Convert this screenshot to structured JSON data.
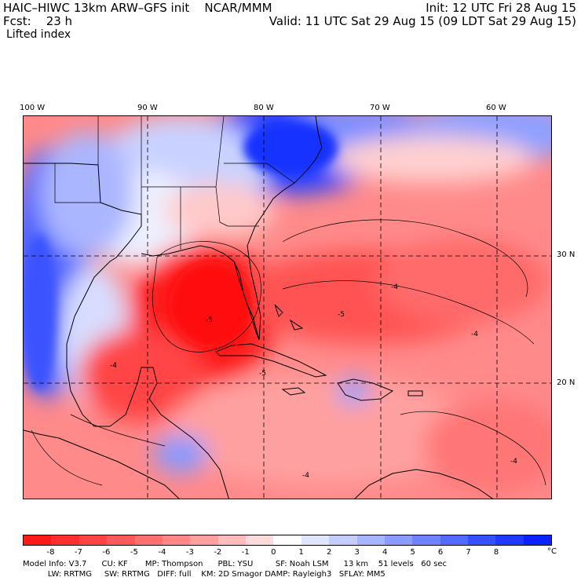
{
  "header": {
    "title": "HAIC–HIWC 13km ARW–GFS init    NCAR/MMM",
    "init": "Init: 12 UTC Fri 28 Aug 15",
    "fcst_label": "Fcst:    23 h",
    "valid": "Valid: 11 UTC Sat 29 Aug 15 (09 LDT Sat 29 Aug 15)",
    "field": "Lifted index"
  },
  "map": {
    "lon_labels": [
      "100 W",
      "90 W",
      "80 W",
      "70 W",
      "60 W"
    ],
    "lat_labels": [
      "30 N",
      "20 N"
    ],
    "contour_labels": [
      "-5",
      "-4",
      "-4",
      "-5",
      "-4",
      "-4",
      "-4",
      "-5"
    ]
  },
  "colorbar": {
    "unit": "°C",
    "ticks": [
      "-8",
      "-7",
      "-6",
      "-5",
      "-4",
      "-3",
      "-2",
      "-1",
      "0",
      "1",
      "2",
      "3",
      "4",
      "5",
      "6",
      "7",
      "8"
    ],
    "colors": [
      "#ff1a1a",
      "#ff2e2e",
      "#ff4444",
      "#ff5a5a",
      "#ff7070",
      "#ff8787",
      "#ffa0a0",
      "#ffbcbc",
      "#ffdcdc",
      "#ffffff",
      "#dfe6ff",
      "#c3cdff",
      "#a7b4ff",
      "#8b9bff",
      "#6f82ff",
      "#5369ff",
      "#3750ff",
      "#1f3aff",
      "#0a22ff"
    ]
  },
  "footer": {
    "line1": "Model Info: V3.7      CU: KF       MP: Thompson      PBL: YSU         SF: Noah LSM      13 km    51 levels   60 sec",
    "line2": "          LW: RRTMG     SW: RRTMG   DIFF: full    KM: 2D Smagor DAMP: Rayleigh3   SFLAY: MM5"
  }
}
